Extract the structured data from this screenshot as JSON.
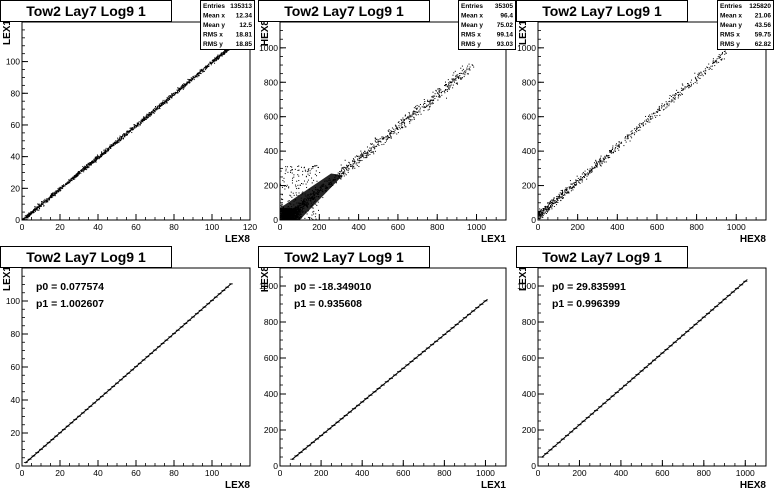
{
  "chart_data": [
    {
      "type": "scatter",
      "title": "Tow2 Lay7 Log9 1",
      "xlabel": "LEX8",
      "ylabel": "LEX1",
      "xlim": [
        0,
        120
      ],
      "ylim": [
        0,
        125
      ],
      "xticks": [
        0,
        20,
        40,
        60,
        80,
        100,
        120
      ],
      "yticks": [
        0,
        20,
        40,
        60,
        80,
        100
      ],
      "stats": [
        {
          "label": "Entries",
          "value": "135313"
        },
        {
          "label": "Mean x",
          "value": "12.34"
        },
        {
          "label": "Mean y",
          "value": "12.5"
        },
        {
          "label": "RMS x",
          "value": "18.81"
        },
        {
          "label": "RMS y",
          "value": "18.85"
        }
      ],
      "trend": {
        "slope": 1.0,
        "intercept": 0.0,
        "xmin": 0,
        "xmax": 110
      }
    },
    {
      "type": "scatter",
      "title": "Tow2 Lay7 Log9 1",
      "xlabel": "LEX1",
      "ylabel": "HEX8",
      "xlim": [
        0,
        1150
      ],
      "ylim": [
        0,
        1150
      ],
      "xticks": [
        0,
        200,
        400,
        600,
        800,
        1000
      ],
      "yticks": [
        0,
        200,
        400,
        600,
        800,
        1000
      ],
      "stats": [
        {
          "label": "Entries",
          "value": "35305"
        },
        {
          "label": "Mean x",
          "value": "96.4"
        },
        {
          "label": "Mean y",
          "value": "75.02"
        },
        {
          "label": "RMS x",
          "value": "99.14"
        },
        {
          "label": "RMS y",
          "value": "93.03"
        }
      ],
      "trend": {
        "slope": 0.936,
        "intercept": -18.3,
        "xmin": 20,
        "xmax": 1000
      }
    },
    {
      "type": "scatter",
      "title": "Tow2 Lay7 Log9 1",
      "xlabel": "HEX8",
      "ylabel": "LEX1",
      "xlim": [
        0,
        1150
      ],
      "ylim": [
        0,
        1150
      ],
      "xticks": [
        0,
        200,
        400,
        600,
        800,
        1000
      ],
      "yticks": [
        0,
        200,
        400,
        600,
        800,
        1000
      ],
      "stats": [
        {
          "label": "Entries",
          "value": "125820"
        },
        {
          "label": "Mean x",
          "value": "21.06"
        },
        {
          "label": "Mean y",
          "value": "43.56"
        },
        {
          "label": "RMS x",
          "value": "59.75"
        },
        {
          "label": "RMS y",
          "value": "62.82"
        }
      ],
      "trend": {
        "slope": 1.0,
        "intercept": 30,
        "xmin": 0,
        "xmax": 950
      }
    },
    {
      "type": "line",
      "title": "Tow2 Lay7 Log9 1",
      "xlabel": "LEX8",
      "ylabel": "LEX1",
      "xlim": [
        0,
        120
      ],
      "ylim": [
        0,
        120
      ],
      "xticks": [
        0,
        20,
        40,
        60,
        80,
        100
      ],
      "yticks": [
        0,
        20,
        40,
        60,
        80,
        100
      ],
      "fit": [
        {
          "name": "p0",
          "value": "0.077574"
        },
        {
          "name": "p1",
          "value": "1.002607"
        }
      ],
      "fit_params": {
        "p0": 0.077574,
        "p1": 1.002607
      },
      "points": {
        "xmin": 2,
        "xmax": 110,
        "step": 2
      }
    },
    {
      "type": "line",
      "title": "Tow2 Lay7 Log9 1",
      "xlabel": "LEX1",
      "ylabel": "HEX8",
      "xlim": [
        0,
        1100
      ],
      "ylim": [
        0,
        1100
      ],
      "xticks": [
        0,
        200,
        400,
        600,
        800,
        1000
      ],
      "yticks": [
        0,
        200,
        400,
        600,
        800,
        1000
      ],
      "fit": [
        {
          "name": "p0",
          "value": "-18.349010"
        },
        {
          "name": "p1",
          "value": "0.935608"
        }
      ],
      "fit_params": {
        "p0": -18.34901,
        "p1": 0.935608
      },
      "points": {
        "xmin": 60,
        "xmax": 1010,
        "step": 20
      }
    },
    {
      "type": "line",
      "title": "Tow2 Lay7 Log9 1",
      "xlabel": "HEX8",
      "ylabel": "LEX1",
      "xlim": [
        0,
        1100
      ],
      "ylim": [
        0,
        1100
      ],
      "xticks": [
        0,
        200,
        400,
        600,
        800,
        1000
      ],
      "yticks": [
        0,
        200,
        400,
        600,
        800,
        1000
      ],
      "fit": [
        {
          "name": "p0",
          "value": "29.835991"
        },
        {
          "name": "p1",
          "value": "0.996399"
        }
      ],
      "fit_params": {
        "p0": 29.835991,
        "p1": 0.996399
      },
      "points": {
        "xmin": 20,
        "xmax": 1010,
        "step": 20
      }
    }
  ]
}
